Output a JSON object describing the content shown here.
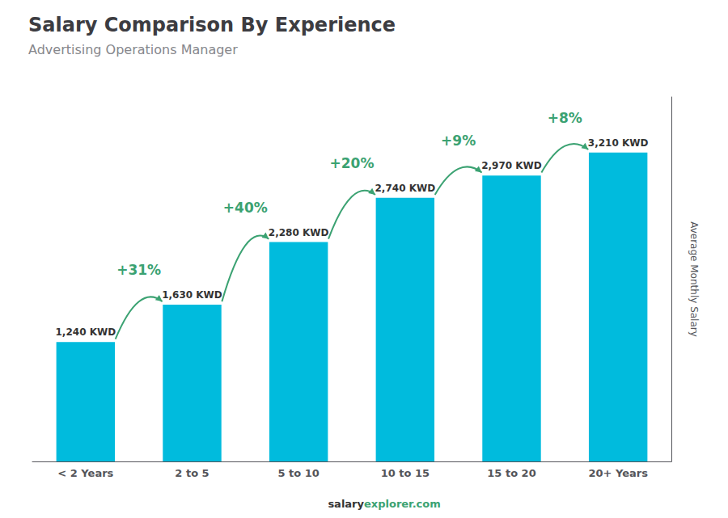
{
  "chart_data": {
    "type": "bar",
    "title": "Salary Comparison By Experience",
    "subtitle": "Advertising Operations Manager",
    "ylabel": "Average Monthly Salary",
    "categories": [
      "< 2 Years",
      "2 to 5",
      "5 to 10",
      "10 to 15",
      "15 to 20",
      "20+ Years"
    ],
    "values": [
      1240,
      1630,
      2280,
      2740,
      2970,
      3210
    ],
    "value_labels": [
      "1,240 KWD",
      "1,630 KWD",
      "2,280 KWD",
      "2,740 KWD",
      "2,970 KWD",
      "3,210 KWD"
    ],
    "data_labels": true,
    "annotations": [
      "+31%",
      "+40%",
      "+20%",
      "+9%",
      "+8%"
    ],
    "footer": [
      "salary",
      "explorer.com"
    ],
    "color": "#00bbdd",
    "ylim": [
      0,
      3787.8
    ],
    "grid": false,
    "tick_labels": "x"
  }
}
